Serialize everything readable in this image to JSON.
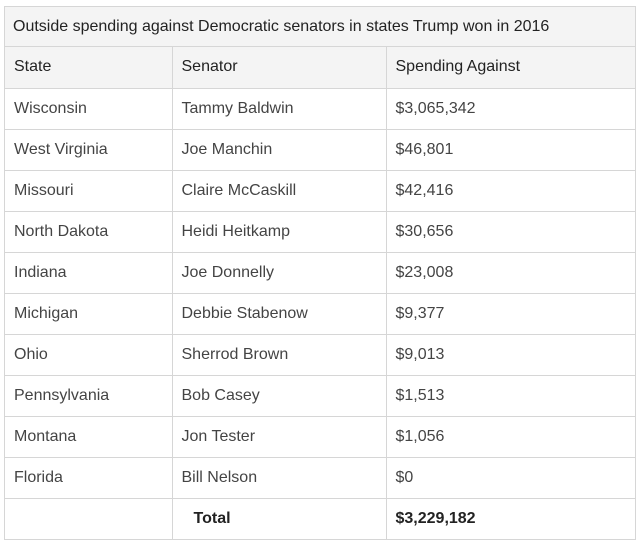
{
  "table": {
    "caption": "Outside spending against Democratic senators in states Trump won in 2016",
    "headers": {
      "state": "State",
      "senator": "Senator",
      "spending": "Spending Against"
    },
    "rows": [
      {
        "state": "Wisconsin",
        "senator": "Tammy Baldwin",
        "spending": "$3,065,342"
      },
      {
        "state": "West Virginia",
        "senator": "Joe Manchin",
        "spending": "$46,801"
      },
      {
        "state": "Missouri",
        "senator": "Claire McCaskill",
        "spending": "$42,416"
      },
      {
        "state": "North Dakota",
        "senator": "Heidi Heitkamp",
        "spending": "$30,656"
      },
      {
        "state": "Indiana",
        "senator": "Joe Donnelly",
        "spending": "$23,008"
      },
      {
        "state": "Michigan",
        "senator": "Debbie Stabenow",
        "spending": "$9,377"
      },
      {
        "state": "Ohio",
        "senator": "Sherrod Brown",
        "spending": "$9,013"
      },
      {
        "state": "Pennsylvania",
        "senator": "Bob Casey",
        "spending": "$1,513"
      },
      {
        "state": "Montana",
        "senator": "Jon Tester",
        "spending": "$1,056"
      },
      {
        "state": "Florida",
        "senator": "Bill Nelson",
        "spending": "$0"
      }
    ],
    "total": {
      "label": "Total",
      "value": "$3,229,182"
    }
  }
}
